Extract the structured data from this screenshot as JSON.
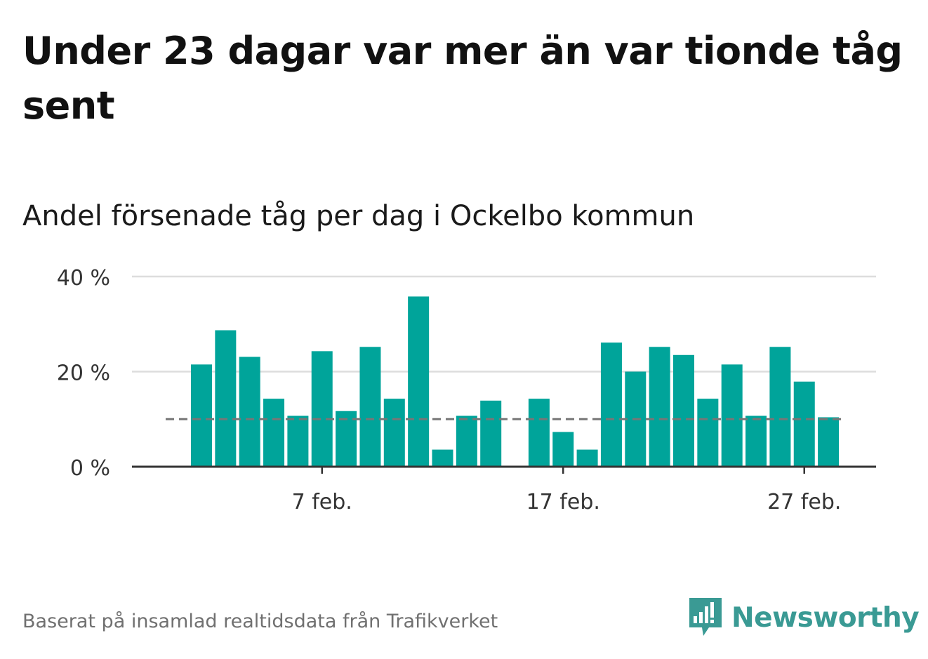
{
  "title": "Under 23 dagar var mer än var tionde tåg sent",
  "subtitle": "Andel försenade tåg per dag i Ockelbo kommun",
  "source": "Baserat på insamlad realtidsdata från Trafikverket",
  "brand": {
    "name": "Newsworthy",
    "color": "#3a9a94",
    "icon": "bar-chart-speech-bubble-icon"
  },
  "colors": {
    "bar": "#00a49a",
    "grid": "#dddddd",
    "axis": "#333333",
    "reference": "#777777"
  },
  "chart_data": {
    "type": "bar",
    "title": "Andel försenade tåg per dag i Ockelbo kommun",
    "xlabel": "",
    "ylabel": "",
    "x_unit": "day",
    "x_start_label": "2 feb.",
    "days": [
      "2 feb.",
      "3 feb.",
      "4 feb.",
      "5 feb.",
      "6 feb.",
      "7 feb.",
      "8 feb.",
      "9 feb.",
      "10 feb.",
      "11 feb.",
      "12 feb.",
      "13 feb.",
      "14 feb.",
      "15 feb.",
      "16 feb.",
      "17 feb.",
      "18 feb.",
      "19 feb.",
      "20 feb.",
      "21 feb.",
      "22 feb.",
      "23 feb.",
      "24 feb.",
      "25 feb.",
      "26 feb.",
      "27 feb.",
      "28 feb."
    ],
    "values": [
      21.5,
      28.7,
      23.1,
      14.3,
      10.7,
      24.3,
      11.7,
      25.2,
      14.3,
      35.8,
      3.6,
      10.7,
      13.9,
      null,
      14.3,
      7.3,
      3.6,
      26.1,
      20.0,
      25.2,
      23.5,
      14.3,
      21.5,
      10.7,
      25.2,
      17.9,
      10.4
    ],
    "ylim": [
      0,
      40
    ],
    "yticks": [
      0,
      20,
      40
    ],
    "ytick_labels": [
      "0 %",
      "20 %",
      "40 %"
    ],
    "xticks": [
      "7 feb.",
      "17 feb.",
      "27 feb."
    ],
    "reference_line": 10,
    "grid": true,
    "legend": "none"
  }
}
